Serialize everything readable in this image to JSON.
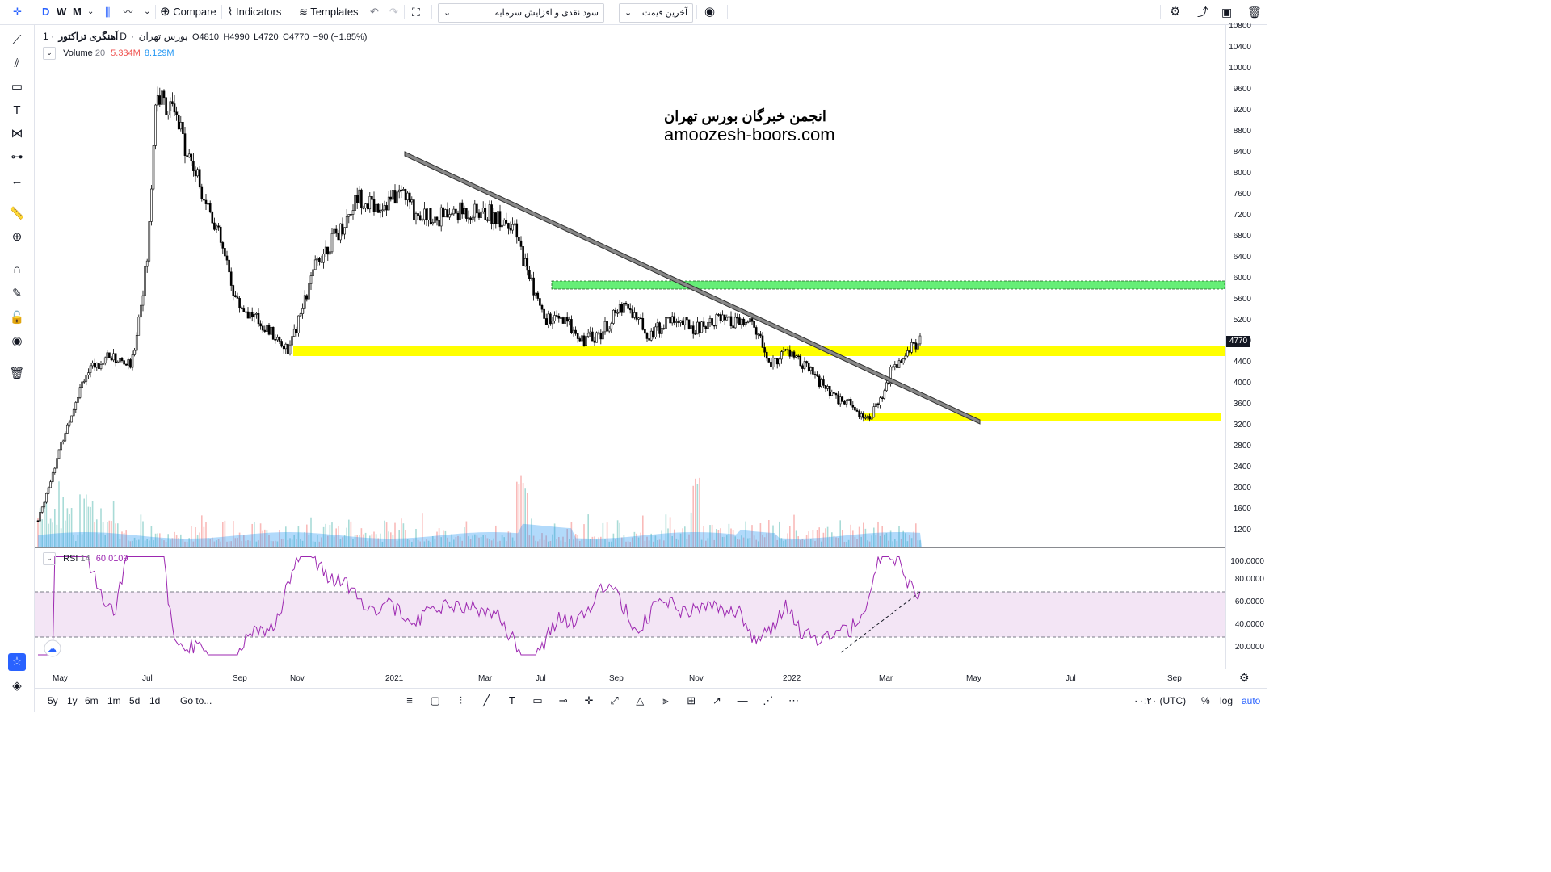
{
  "toolbar": {
    "intervals": [
      "D",
      "W",
      "M"
    ],
    "compare_label": "Compare",
    "indicators_label": "Indicators",
    "templates_label": "Templates",
    "symbol_dropdown": "سود نقدی و افزایش سرمایه",
    "price_dropdown": "آخرین قیمت"
  },
  "legend": {
    "symbol": "آهنگری تراکتور",
    "interval": "1D",
    "exchange": "بورس تهران",
    "open": "O4810",
    "high": "H4990",
    "low": "L4720",
    "close": "C4770",
    "change": "−90 (−1.85%)"
  },
  "volume_legend": {
    "name": "Volume",
    "length": "20",
    "value1": "5.334M",
    "value2": "8.129M"
  },
  "rsi_legend": {
    "name": "RSI",
    "length": "14",
    "value": "60.0109"
  },
  "watermark": {
    "fa": "انجمن خبرگان بورس تهران",
    "en": "amoozesh-boors.com"
  },
  "price_axis": [
    "10800",
    "10400",
    "10000",
    "9600",
    "9200",
    "8800",
    "8400",
    "8000",
    "7600",
    "7200",
    "6800",
    "6400",
    "6000",
    "5600",
    "5200",
    "4800",
    "4400",
    "4000",
    "3600",
    "3200",
    "2800",
    "2400",
    "2000",
    "1600",
    "1200"
  ],
  "last_price": "4770",
  "rsi_axis": [
    "100.0000",
    "80.0000",
    "60.0000",
    "40.0000",
    "20.0000"
  ],
  "time_axis": [
    "May",
    "Jul",
    "Sep",
    "Nov",
    "2021",
    "Mar",
    "Jul",
    "Sep",
    "Nov",
    "2022",
    "Mar",
    "May",
    "Jul",
    "Sep"
  ],
  "bottom": {
    "ranges": [
      "5y",
      "1y",
      "6m",
      "1m",
      "5d",
      "1d"
    ],
    "goto": "Go to...",
    "clock": "۰۰:۲۰ (UTC)",
    "percent": "%",
    "log": "log",
    "auto": "auto"
  },
  "colors": {
    "accent": "#2962ff",
    "up": "#26a69a",
    "down": "#ef5350",
    "rsi": "#9c27b0",
    "zone_yellow": "#ffff00",
    "zone_green": "#66ee77"
  },
  "chart_data": {
    "type": "candlestick",
    "title": "",
    "price_range": [
      1000,
      10800
    ],
    "key_prices": {
      "last": 4770,
      "open": 4810,
      "high": 4990,
      "low": 4720,
      "yellow_support": 4600,
      "green_resistance": 5900,
      "lower_yellow": 3300
    },
    "rsi_range": [
      0,
      100
    ],
    "rsi_bands": [
      30,
      70
    ],
    "rsi_last": 60.0109
  }
}
